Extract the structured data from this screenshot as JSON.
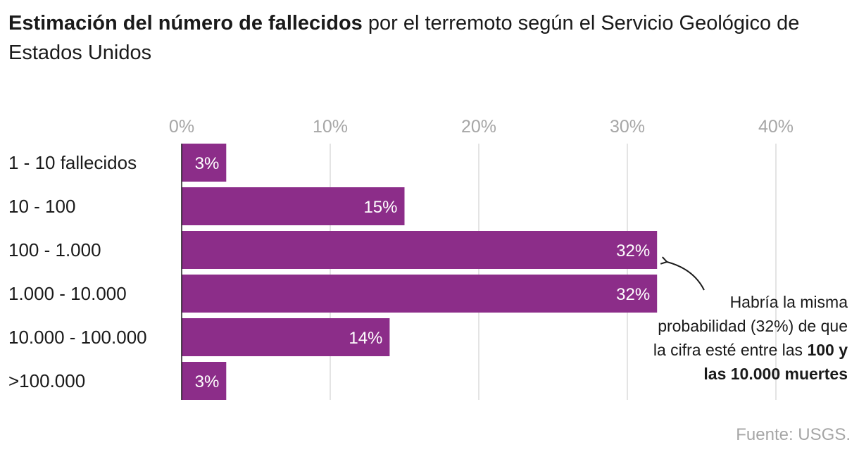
{
  "title": {
    "bold": "Estimación del número de fallecidos",
    "rest": " por el terremoto según el Servicio Geológico de Estados Unidos"
  },
  "chart_data": {
    "type": "bar",
    "orientation": "horizontal",
    "categories": [
      "1 - 10 fallecidos",
      "10 - 100",
      "100 - 1.000",
      "1.000 - 10.000",
      "10.000 - 100.000",
      ">100.000"
    ],
    "values": [
      3,
      15,
      32,
      32,
      14,
      3
    ],
    "value_labels": [
      "3%",
      "15%",
      "32%",
      "32%",
      "14%",
      "3%"
    ],
    "xlim": [
      0,
      40
    ],
    "xticks": [
      0,
      10,
      20,
      30,
      40
    ],
    "xtick_labels": [
      "0%",
      "10%",
      "20%",
      "30%",
      "40%"
    ],
    "grid": true,
    "bar_color": "#8c2d89",
    "annotation": {
      "line1": "Habría la misma probabilidad (32%) de que la cifra esté entre las ",
      "bold": "100 y las 10.000 muertes",
      "points_to": "100 - 1.000"
    }
  },
  "source": "Fuente: USGS."
}
